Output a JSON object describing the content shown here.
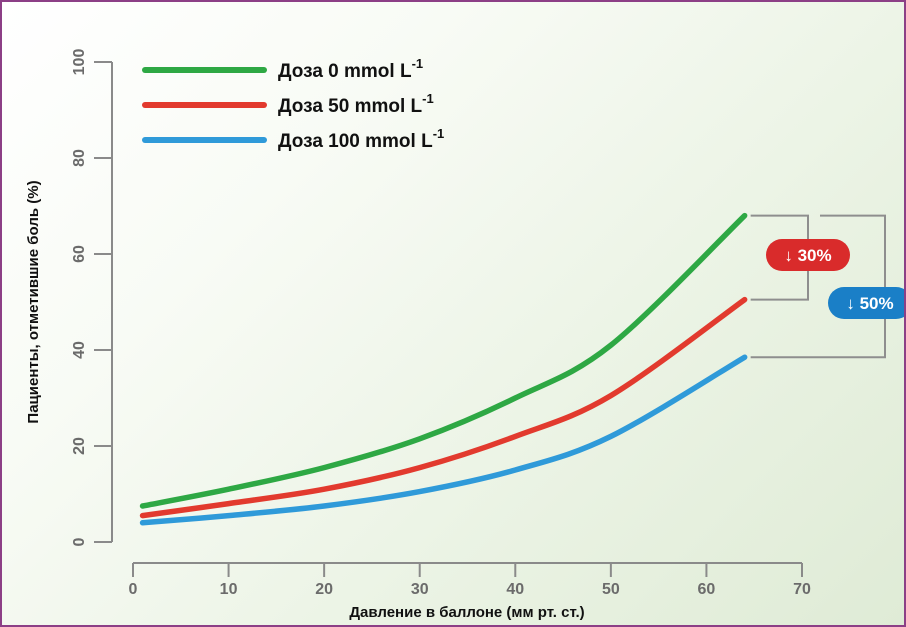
{
  "chart_data": {
    "type": "line",
    "xlabel": "Давление в баллоне (мм рт. ст.)",
    "ylabel": "Пациенты, отметившие боль (%)",
    "xlim": [
      0,
      70
    ],
    "ylim": [
      0,
      100
    ],
    "x_ticks": [
      "0",
      "10",
      "20",
      "30",
      "40",
      "50",
      "60",
      "70"
    ],
    "y_ticks": [
      "0",
      "20",
      "40",
      "60",
      "80",
      "100"
    ],
    "grid": false,
    "legend_position": "top-left",
    "series": [
      {
        "name": "Доза 0 mmol L",
        "superscript": "-1",
        "color": "#2ea844",
        "x": [
          1,
          10,
          20,
          30,
          40,
          50,
          64
        ],
        "y": [
          7.5,
          11,
          15.5,
          21.5,
          30,
          41,
          68
        ]
      },
      {
        "name": "Доза 50 mmol L",
        "superscript": "-1",
        "color": "#e23a2e",
        "x": [
          1,
          10,
          20,
          30,
          40,
          50,
          64
        ],
        "y": [
          5.5,
          8,
          11,
          15.5,
          22,
          30.5,
          50.5
        ]
      },
      {
        "name": "Доза 100 mmol L",
        "superscript": "-1",
        "color": "#2f9ad9",
        "x": [
          1,
          10,
          20,
          30,
          40,
          50,
          64
        ],
        "y": [
          4,
          5.5,
          7.5,
          10.5,
          15,
          22,
          38.5
        ]
      }
    ],
    "annotations": [
      {
        "text": "↓ 30%",
        "color": "#d92b2b",
        "from_series": 0,
        "to_series": 1
      },
      {
        "text": "↓ 50%",
        "color": "#1a7fc7",
        "from_series": 0,
        "to_series": 2
      }
    ]
  }
}
